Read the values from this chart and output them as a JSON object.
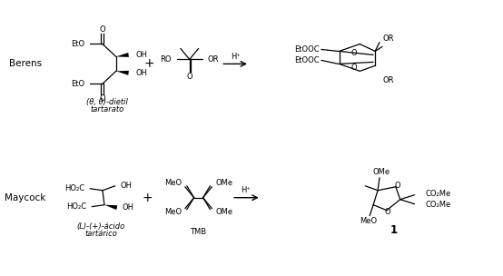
{
  "background_color": "#ffffff",
  "figure_width": 5.54,
  "figure_height": 3.04,
  "dpi": 100,
  "row1_label": "Berens",
  "row2_label": "Maycock",
  "row1_sub1": "(θ, θ)-dietil",
  "row1_sub2": "tartarato",
  "row2_sub1": "(L)-(+)-ácido",
  "row2_sub2": "tartárico",
  "tmb_label": "TMB",
  "product2_label": "1",
  "hplus": "H⁺"
}
